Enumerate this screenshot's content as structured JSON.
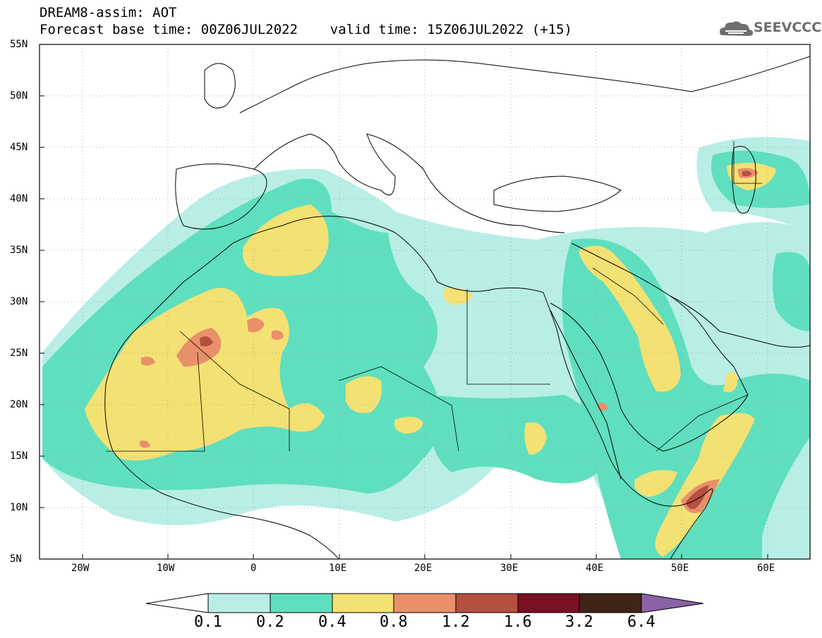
{
  "header": {
    "line1": "DREAM8-assim: AOT",
    "line2": "Forecast base time: 00Z06JUL2022    valid time: 15Z06JUL2022 (+15)"
  },
  "logo": {
    "text": "SEEVCCC",
    "icon": "cloud-icon"
  },
  "map": {
    "lat_labels": [
      "55N",
      "50N",
      "45N",
      "40N",
      "35N",
      "30N",
      "25N",
      "20N",
      "15N",
      "10N",
      "5N"
    ],
    "lon_labels": [
      "20W",
      "10W",
      "0",
      "10E",
      "20E",
      "30E",
      "40E",
      "50E",
      "60E"
    ],
    "lon_range": [
      -25,
      65
    ],
    "lat_range": [
      5,
      55
    ],
    "grid": "dotted"
  },
  "colorbar": {
    "levels": [
      "0.1",
      "0.2",
      "0.4",
      "0.8",
      "1.2",
      "1.6",
      "3.2",
      "6.4"
    ],
    "colors": [
      "#ffffff",
      "#b8eee5",
      "#5fdfbf",
      "#f4e173",
      "#e9906a",
      "#b54f3f",
      "#7b0f24",
      "#3f2418",
      "#8a62a5"
    ]
  }
}
